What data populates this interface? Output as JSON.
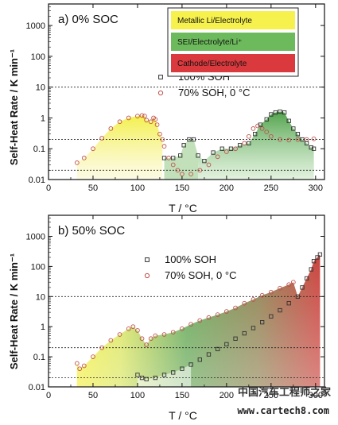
{
  "chart_data": [
    {
      "type": "scatter",
      "panel_label": "a) 0% SOC",
      "xlabel": "T / °C",
      "ylabel": "Self-Heat Rate / K min⁻¹",
      "xlim": [
        0,
        310
      ],
      "ylim": [
        0.01,
        5000
      ],
      "yscale": "log",
      "xticks": [
        0,
        50,
        100,
        150,
        200,
        250,
        300
      ],
      "yticks": [
        {
          "v": 0.01,
          "label": "0.01"
        },
        {
          "v": 0.1,
          "label": "0.1"
        },
        {
          "v": 1,
          "label": "1"
        },
        {
          "v": 10,
          "label": "10"
        },
        {
          "v": 100,
          "label": "100"
        },
        {
          "v": 1000,
          "label": "1000"
        }
      ],
      "reference_lines": [
        10,
        0.2,
        0.02
      ],
      "legend": [
        {
          "name": "100% SOH",
          "marker": "square",
          "color": "#333333"
        },
        {
          "name": "70% SOH, 0 °C",
          "marker": "circle",
          "color": "#c0504d"
        }
      ],
      "regions": [
        {
          "name": "Metallic Li/Electrolyte",
          "color": "#f5ef3a"
        },
        {
          "name": "SEI/Electrolyte/Li⁺",
          "color": "#5cb34a"
        },
        {
          "name": "Cathode/Electrolyte",
          "color": "#d62528"
        }
      ],
      "series": [
        {
          "name": "70% SOH, 0 °C",
          "marker": "circle",
          "color": "#c0504d",
          "points": [
            [
              32,
              0.035
            ],
            [
              40,
              0.05
            ],
            [
              50,
              0.1
            ],
            [
              60,
              0.22
            ],
            [
              70,
              0.45
            ],
            [
              80,
              0.75
            ],
            [
              90,
              1.0
            ],
            [
              100,
              1.15
            ],
            [
              105,
              1.2
            ],
            [
              108,
              1.15
            ],
            [
              110,
              0.85
            ],
            [
              115,
              0.75
            ],
            [
              118,
              1.0
            ],
            [
              120,
              0.9
            ],
            [
              122,
              0.6
            ],
            [
              125,
              0.3
            ],
            [
              128,
              0.2
            ],
            [
              130,
              0.12
            ],
            [
              135,
              0.05
            ],
            [
              140,
              0.03
            ],
            [
              145,
              0.02
            ],
            [
              150,
              0.015
            ],
            [
              160,
              0.015
            ],
            [
              170,
              0.02
            ],
            [
              180,
              0.03
            ],
            [
              190,
              0.055
            ],
            [
              200,
              0.08
            ],
            [
              210,
              0.1
            ],
            [
              220,
              0.15
            ],
            [
              225,
              0.25
            ],
            [
              230,
              0.45
            ],
            [
              235,
              0.55
            ],
            [
              240,
              0.45
            ],
            [
              245,
              0.35
            ],
            [
              250,
              0.25
            ],
            [
              260,
              0.2
            ],
            [
              270,
              0.19
            ],
            [
              280,
              0.2
            ],
            [
              290,
              0.2
            ],
            [
              298,
              0.21
            ]
          ]
        },
        {
          "name": "100% SOH",
          "marker": "square",
          "color": "#333333",
          "points": [
            [
              130,
              0.05
            ],
            [
              140,
              0.05
            ],
            [
              148,
              0.06
            ],
            [
              152,
              0.13
            ],
            [
              158,
              0.2
            ],
            [
              163,
              0.2
            ],
            [
              168,
              0.06
            ],
            [
              175,
              0.04
            ],
            [
              185,
              0.075
            ],
            [
              195,
              0.1
            ],
            [
              205,
              0.1
            ],
            [
              215,
              0.13
            ],
            [
              225,
              0.15
            ],
            [
              232,
              0.3
            ],
            [
              238,
              0.6
            ],
            [
              245,
              0.9
            ],
            [
              250,
              1.3
            ],
            [
              255,
              1.5
            ],
            [
              260,
              1.6
            ],
            [
              265,
              1.5
            ],
            [
              270,
              0.8
            ],
            [
              275,
              0.45
            ],
            [
              280,
              0.3
            ],
            [
              285,
              0.2
            ],
            [
              290,
              0.15
            ],
            [
              295,
              0.11
            ],
            [
              298,
              0.1
            ]
          ]
        }
      ]
    },
    {
      "type": "scatter",
      "panel_label": "b) 50% SOC",
      "xlabel": "T / °C",
      "ylabel": "Self-Heat Rate / K min⁻¹",
      "xlim": [
        0,
        310
      ],
      "ylim": [
        0.01,
        5000
      ],
      "yscale": "log",
      "xticks": [
        0,
        50,
        100,
        150,
        200,
        250,
        300
      ],
      "yticks": [
        {
          "v": 0.01,
          "label": "0.01"
        },
        {
          "v": 0.1,
          "label": "0.1"
        },
        {
          "v": 1,
          "label": "1"
        },
        {
          "v": 10,
          "label": "10"
        },
        {
          "v": 100,
          "label": "100"
        },
        {
          "v": 1000,
          "label": "1000"
        }
      ],
      "reference_lines": [
        10,
        0.2,
        0.02
      ],
      "legend": [
        {
          "name": "100% SOH",
          "marker": "square",
          "color": "#333333"
        },
        {
          "name": "70% SOH, 0 °C",
          "marker": "circle",
          "color": "#c0504d"
        }
      ],
      "series": [
        {
          "name": "70% SOH, 0 °C",
          "marker": "circle",
          "color": "#c0504d",
          "points": [
            [
              32,
              0.06
            ],
            [
              35,
              0.04
            ],
            [
              40,
              0.05
            ],
            [
              50,
              0.1
            ],
            [
              60,
              0.2
            ],
            [
              70,
              0.35
            ],
            [
              80,
              0.55
            ],
            [
              90,
              0.85
            ],
            [
              95,
              1.0
            ],
            [
              100,
              0.75
            ],
            [
              105,
              0.4
            ],
            [
              110,
              0.25
            ],
            [
              115,
              0.4
            ],
            [
              120,
              0.5
            ],
            [
              130,
              0.55
            ],
            [
              140,
              0.65
            ],
            [
              150,
              0.85
            ],
            [
              160,
              1.2
            ],
            [
              170,
              1.6
            ],
            [
              180,
              2.0
            ],
            [
              190,
              2.5
            ],
            [
              200,
              3.2
            ],
            [
              210,
              4.2
            ],
            [
              220,
              6
            ],
            [
              230,
              8
            ],
            [
              240,
              11
            ],
            [
              250,
              14
            ],
            [
              260,
              19
            ],
            [
              270,
              25
            ],
            [
              275,
              30
            ]
          ]
        },
        {
          "name": "100% SOH",
          "marker": "square",
          "color": "#333333",
          "points": [
            [
              100,
              0.025
            ],
            [
              105,
              0.02
            ],
            [
              110,
              0.018
            ],
            [
              120,
              0.02
            ],
            [
              130,
              0.025
            ],
            [
              140,
              0.03
            ],
            [
              150,
              0.04
            ],
            [
              160,
              0.055
            ],
            [
              170,
              0.08
            ],
            [
              180,
              0.12
            ],
            [
              190,
              0.18
            ],
            [
              200,
              0.26
            ],
            [
              210,
              0.4
            ],
            [
              220,
              0.6
            ],
            [
              230,
              0.9
            ],
            [
              240,
              1.4
            ],
            [
              250,
              2.2
            ],
            [
              260,
              3.5
            ],
            [
              270,
              6
            ],
            [
              280,
              10
            ],
            [
              285,
              20
            ],
            [
              290,
              40
            ],
            [
              295,
              80
            ],
            [
              298,
              150
            ],
            [
              302,
              200
            ],
            [
              305,
              250
            ]
          ]
        }
      ]
    }
  ],
  "watermark": {
    "line1": "中国汽车工程师之家",
    "line2": "www.cartech8.com"
  }
}
